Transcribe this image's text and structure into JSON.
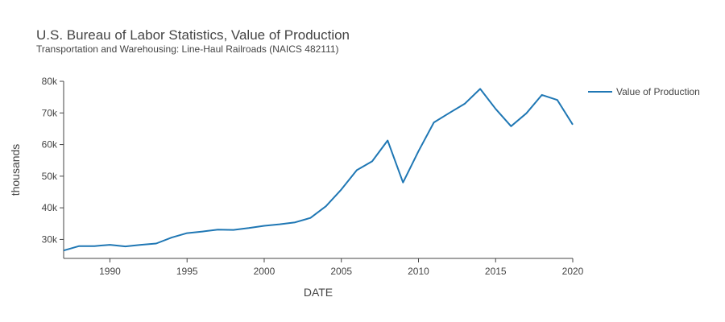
{
  "chart_data": {
    "type": "line",
    "title": "U.S. Bureau of Labor Statistics, Value of Production",
    "subtitle": "Transportation and Warehousing: Line-Haul Railroads (NAICS 482111)",
    "xlabel": "DATE",
    "ylabel": "thousands",
    "xlim": [
      1987,
      2020
    ],
    "ylim": [
      24000,
      80000
    ],
    "x_ticks": [
      1990,
      1995,
      2000,
      2005,
      2010,
      2015,
      2020
    ],
    "y_ticks": [
      30000,
      40000,
      50000,
      60000,
      70000,
      80000
    ],
    "y_tick_labels": [
      "30k",
      "40k",
      "50k",
      "60k",
      "70k",
      "80k"
    ],
    "grid": false,
    "legend_position": "top-right",
    "series": [
      {
        "name": "Value of Production",
        "color": "#1f77b4",
        "x": [
          1987,
          1988,
          1989,
          1990,
          1991,
          1992,
          1993,
          1994,
          1995,
          1996,
          1997,
          1998,
          1999,
          2000,
          2001,
          2002,
          2003,
          2004,
          2005,
          2006,
          2007,
          2008,
          2009,
          2010,
          2011,
          2012,
          2013,
          2014,
          2015,
          2016,
          2017,
          2018,
          2019,
          2020
        ],
        "y": [
          26500,
          27900,
          27900,
          28300,
          27800,
          28300,
          28700,
          30600,
          32000,
          32500,
          33100,
          33000,
          33600,
          34300,
          34800,
          35400,
          36800,
          40500,
          45800,
          51900,
          54700,
          61300,
          48000,
          57900,
          67000,
          70000,
          72900,
          77600,
          71300,
          65800,
          69900,
          75700,
          74100,
          66300
        ]
      }
    ]
  }
}
